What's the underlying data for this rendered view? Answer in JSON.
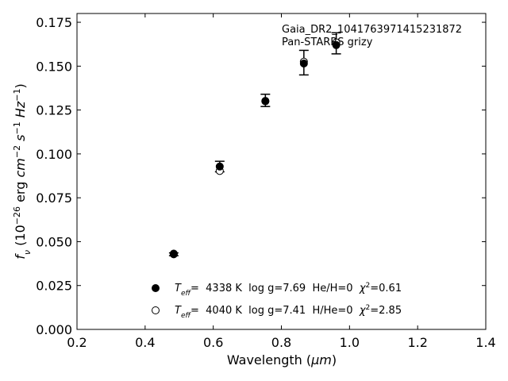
{
  "chart_data": {
    "type": "scatter",
    "xlabel_text": "Wavelength (",
    "xlabel_unit": "μm",
    "xlabel_close": ")",
    "ylabel_f": "f",
    "ylabel_sub": "ν",
    "ylabel_open": " (10",
    "ylabel_exp1": "−26",
    "ylabel_erg": " erg ",
    "ylabel_cm": "cm",
    "ylabel_exp2": "−2",
    "ylabel_s": " s",
    "ylabel_exp3": "−1",
    "ylabel_hz": " Hz",
    "ylabel_exp4": "−1",
    "ylabel_close": ")",
    "xlim": [
      0.2,
      1.4
    ],
    "ylim": [
      0.0,
      0.18
    ],
    "xticks": [
      0.2,
      0.4,
      0.6,
      0.8,
      1.0,
      1.2,
      1.4
    ],
    "xtick_labels": [
      "0.2",
      "0.4",
      "0.6",
      "0.8",
      "1.0",
      "1.2",
      "1.4"
    ],
    "yticks": [
      0.0,
      0.025,
      0.05,
      0.075,
      0.1,
      0.125,
      0.15,
      0.175
    ],
    "ytick_labels": [
      "0.000",
      "0.025",
      "0.050",
      "0.075",
      "0.100",
      "0.125",
      "0.150",
      "0.175"
    ],
    "annotations": [
      "Gaia_DR2_1041763971415231872",
      "Pan-STARRS grizy"
    ],
    "observed": {
      "x": [
        0.484,
        0.619,
        0.753,
        0.866,
        0.961
      ],
      "y": [
        0.0428,
        0.0928,
        0.1305,
        0.152,
        0.163
      ],
      "yerr": [
        0.0008,
        0.003,
        0.0035,
        0.007,
        0.006
      ]
    },
    "series": [
      {
        "marker": "filled",
        "label_T": "T",
        "label_eff": "eff",
        "label_rest": "=  4338 K  log g=7.69  He/H=0  ",
        "label_chi": "χ",
        "label_chi_exp": "2",
        "label_chi_val": "=0.61",
        "x": [
          0.484,
          0.619,
          0.753,
          0.866,
          0.961
        ],
        "y": [
          0.0428,
          0.0928,
          0.13,
          0.1515,
          0.162
        ]
      },
      {
        "marker": "open",
        "label_T": "T",
        "label_eff": "eff",
        "label_rest": "=  4040 K  log g=7.41  H/He=0  ",
        "label_chi": "χ",
        "label_chi_exp": "2",
        "label_chi_val": "=2.85",
        "x": [
          0.484,
          0.619,
          0.753,
          0.866,
          0.961
        ],
        "y": [
          0.0432,
          0.0903,
          0.1302,
          0.1525,
          0.1635
        ]
      }
    ]
  }
}
